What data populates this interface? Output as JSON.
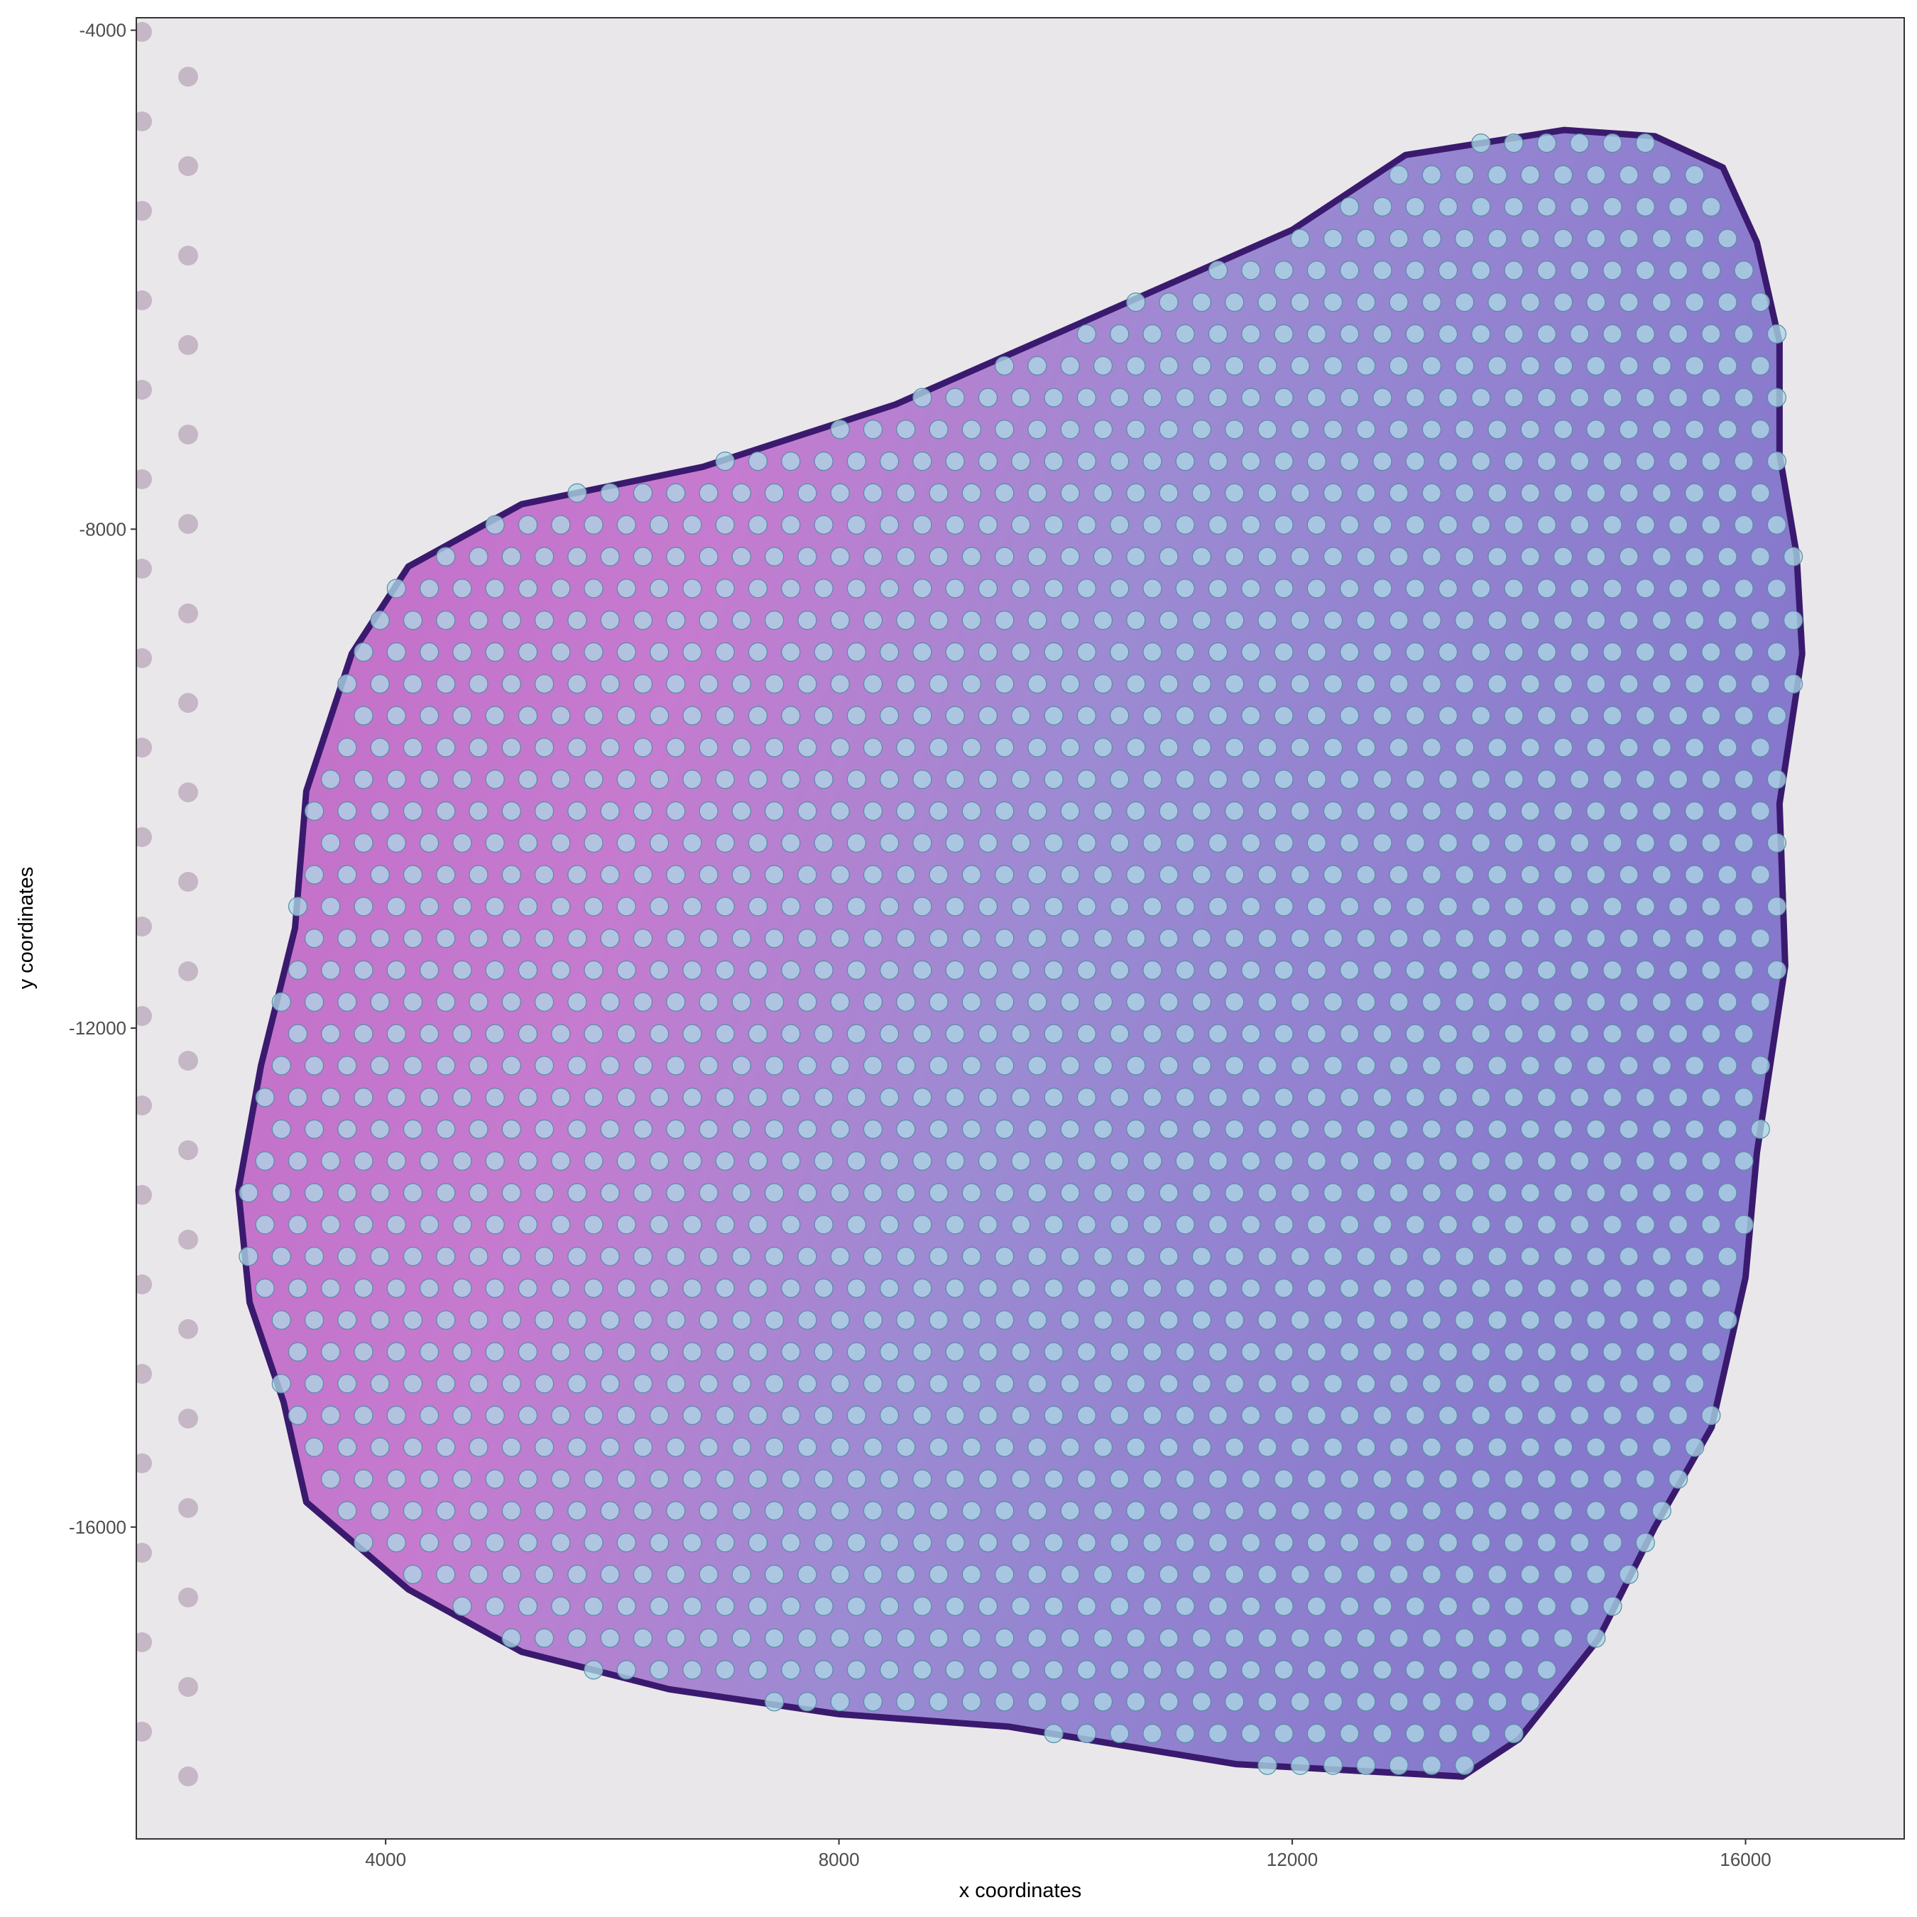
{
  "chart_data": {
    "type": "scatter",
    "title": "",
    "xlabel": "x coordinates",
    "ylabel": "y coordinates",
    "xlim": [
      1800,
      17400
    ],
    "ylim": [
      -18500,
      -3900
    ],
    "xticks": [
      4000,
      8000,
      12000,
      16000
    ],
    "xtick_labels": [
      "4000",
      "8000",
      "12000",
      "16000"
    ],
    "yticks": [
      -4000,
      -8000,
      -12000,
      -16000
    ],
    "ytick_labels": [
      "-4000",
      "-8000",
      "-12000",
      "-16000"
    ],
    "grid": false,
    "legend": "none",
    "background": "H&E stained tissue section image",
    "spot_lattice": {
      "description": "hexagonal grid of capture spots over the tissue",
      "row_spacing": 255,
      "col_spacing": 290,
      "first_row_y": -4650,
      "odd_row_x_offset": 145
    },
    "tissue_outline": [
      [
        14400,
        -4800
      ],
      [
        15200,
        -4850
      ],
      [
        15800,
        -5100
      ],
      [
        16100,
        -5700
      ],
      [
        16300,
        -6500
      ],
      [
        16300,
        -7400
      ],
      [
        16450,
        -8200
      ],
      [
        16500,
        -9000
      ],
      [
        16300,
        -10200
      ],
      [
        16350,
        -11500
      ],
      [
        16100,
        -13000
      ],
      [
        16000,
        -14000
      ],
      [
        15700,
        -15200
      ],
      [
        15200,
        -16000
      ],
      [
        14700,
        -16900
      ],
      [
        14000,
        -17700
      ],
      [
        13500,
        -18000
      ],
      [
        11500,
        -17900
      ],
      [
        9500,
        -17600
      ],
      [
        8000,
        -17500
      ],
      [
        6500,
        -17300
      ],
      [
        5200,
        -17000
      ],
      [
        4200,
        -16500
      ],
      [
        3300,
        -15800
      ],
      [
        3100,
        -15000
      ],
      [
        2800,
        -14200
      ],
      [
        2700,
        -13300
      ],
      [
        2900,
        -12300
      ],
      [
        3200,
        -11200
      ],
      [
        3300,
        -10100
      ],
      [
        3700,
        -9000
      ],
      [
        4200,
        -8300
      ],
      [
        5200,
        -7800
      ],
      [
        6800,
        -7500
      ],
      [
        8500,
        -7000
      ],
      [
        10500,
        -6200
      ],
      [
        12000,
        -5600
      ],
      [
        13000,
        -5000
      ]
    ],
    "spot_count_visible": 2000
  },
  "colors": {
    "spot_fill": "#add8e6",
    "spot_stroke": "#5a8aa8",
    "panel_border": "#333333",
    "slide_background": "#e8e6ea",
    "tissue_pink": "#c070c8",
    "tissue_purple": "#9484d0",
    "tissue_edge": "#3a1a6e"
  }
}
